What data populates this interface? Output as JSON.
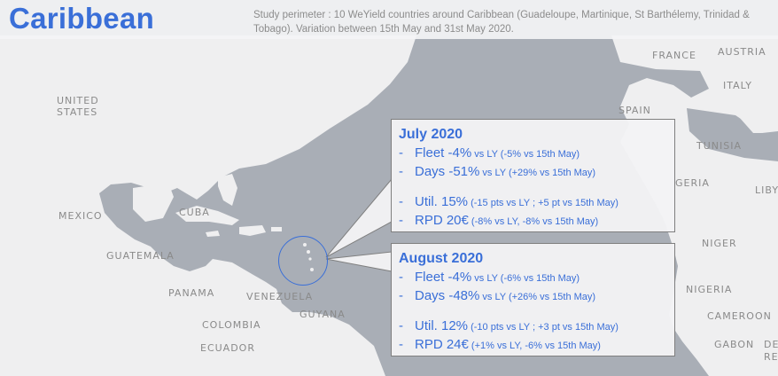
{
  "header": {
    "title": "Caribbean",
    "subtitle": "Study perimeter : 10 WeYield countries around Caribbean (Guadeloupe, Martinique, St Barthélemy, Trinidad & Tobago). Variation between 15th May and 31st May 2020."
  },
  "map_labels": {
    "united_states_1": "UNITED",
    "united_states_2": "STATES",
    "mexico": "MEXICO",
    "cuba": "CUBA",
    "guatemala": "GUATEMALA",
    "panama": "PANAMA",
    "venezuela": "VENEZUELA",
    "guyana": "GUYANA",
    "colombia": "COLOMBIA",
    "ecuador": "ECUADOR",
    "france": "FRANCE",
    "austria": "AUSTRIA",
    "italy": "ITALY",
    "spain": "SPAIN",
    "tunisia": "TUNISIA",
    "algeria": "GERIA",
    "libya": "LIBY",
    "niger": "NIGER",
    "nigeria": "NIGERIA",
    "cameroon": "CAMEROON",
    "gabon": "GABON",
    "congo_1": "DE",
    "congo_2": "RE"
  },
  "july": {
    "title": "July 2020",
    "fleet_main": "Fleet -4%",
    "fleet_detail": " vs LY (-5% vs 15th May)",
    "days_main": "Days -51%",
    "days_detail": " vs LY (+29% vs 15th May)",
    "util_main": "Util. 15%",
    "util_detail": " (-15 pts vs LY ; +5 pt vs 15th May)",
    "rpd_main": "RPD 20€",
    "rpd_detail": " (-8% vs LY, -8% vs 15th May)"
  },
  "august": {
    "title": "August 2020",
    "fleet_main": "Fleet -4%",
    "fleet_detail": " vs LY (-6% vs 15th May)",
    "days_main": "Days -48%",
    "days_detail": " vs LY (+26% vs 15th May)",
    "util_main": "Util. 12%",
    "util_detail": " (-10 pts vs LY ; +3 pt vs 15th May)",
    "rpd_main": "RPD 24€",
    "rpd_detail": " (+1% vs LY, -6% vs 15th May)"
  },
  "colors": {
    "accent": "#3a6fd8",
    "land": "#eeeeef",
    "water": "#aab0b8"
  }
}
